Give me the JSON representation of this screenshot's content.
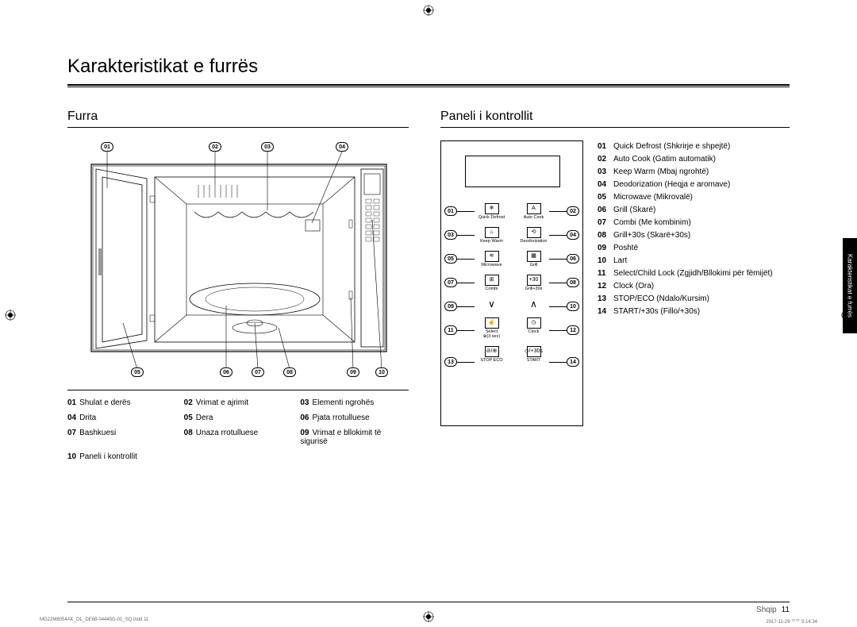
{
  "title": "Karakteristikat e furrës",
  "section_oven": "Furra",
  "section_panel": "Paneli i kontrollit",
  "side_tab": "Karakteristikat e furrës",
  "footer_lang": "Shqip",
  "footer_page": "11",
  "print_file": "MG22M8054AK_OL_DE68-04445G-01_SQ.indd   11",
  "print_date": "2017-11-29   ᄋᄋ 5:14:34",
  "oven_callouts": [
    "01",
    "02",
    "03",
    "04",
    "05",
    "06",
    "07",
    "08",
    "09",
    "10"
  ],
  "oven_legend": [
    {
      "n": "01",
      "t": "Shulat e derës"
    },
    {
      "n": "02",
      "t": "Vrimat e ajrimit"
    },
    {
      "n": "03",
      "t": "Elementi ngrohës"
    },
    {
      "n": "04",
      "t": "Drita"
    },
    {
      "n": "05",
      "t": "Dera"
    },
    {
      "n": "06",
      "t": "Pjata rrotulluese"
    },
    {
      "n": "07",
      "t": "Bashkuesi"
    },
    {
      "n": "08",
      "t": "Unaza rrotulluese"
    },
    {
      "n": "09",
      "t": "Vrimat e bllokimit të sigurisë"
    },
    {
      "n": "10",
      "t": "Paneli i kontrollit"
    }
  ],
  "panel_buttons": [
    {
      "label": "Quick Defrost",
      "icon": "❄"
    },
    {
      "label": "Auto Cook",
      "icon": "A"
    },
    {
      "label": "Keep Warm",
      "icon": "♨"
    },
    {
      "label": "Deodorization",
      "icon": "⟲"
    },
    {
      "label": "Microwave",
      "icon": "≋"
    },
    {
      "label": "Grill",
      "icon": "▦"
    },
    {
      "label": "Combi",
      "icon": "⊞"
    },
    {
      "label": "Grill+30s",
      "icon": "+30"
    },
    {
      "label": "",
      "icon": "∨",
      "noborder": true
    },
    {
      "label": "",
      "icon": "∧",
      "noborder": true
    },
    {
      "label": "Select\n⊕(3 sec)",
      "icon": "☝"
    },
    {
      "label": "Clock",
      "icon": "◷"
    },
    {
      "label": "STOP  ECO",
      "icon": "⊘/⊕"
    },
    {
      "label": "START",
      "icon": "◇/+30s"
    }
  ],
  "panel_callouts": [
    "01",
    "02",
    "03",
    "04",
    "05",
    "06",
    "07",
    "08",
    "09",
    "10",
    "11",
    "12",
    "13",
    "14"
  ],
  "panel_list": [
    {
      "n": "01",
      "t": "Quick Defrost (Shkrirje e shpejtë)"
    },
    {
      "n": "02",
      "t": "Auto Cook (Gatim automatik)"
    },
    {
      "n": "03",
      "t": "Keep Warm (Mbaj ngrohtë)"
    },
    {
      "n": "04",
      "t": "Deodorization (Heqja e aromave)"
    },
    {
      "n": "05",
      "t": "Microwave (Mikrovalë)"
    },
    {
      "n": "06",
      "t": "Grill (Skarë)"
    },
    {
      "n": "07",
      "t": "Combi (Me kombinim)"
    },
    {
      "n": "08",
      "t": "Grill+30s (Skarë+30s)"
    },
    {
      "n": "09",
      "t": "Poshtë"
    },
    {
      "n": "10",
      "t": "Lart"
    },
    {
      "n": "11",
      "t": "Select/Child Lock (Zgjidh/Bllokimi për fëmijët)"
    },
    {
      "n": "12",
      "t": "Clock (Ora)"
    },
    {
      "n": "13",
      "t": "STOP/ECO (Ndalo/Kursim)"
    },
    {
      "n": "14",
      "t": "START/+30s (Fillo/+30s)"
    }
  ]
}
